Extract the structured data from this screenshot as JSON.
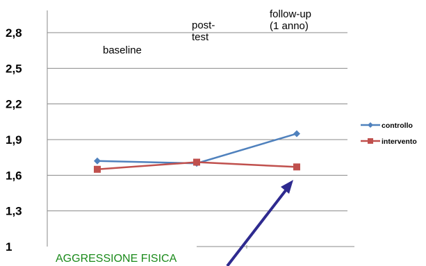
{
  "chart_data": {
    "type": "line",
    "categories": [
      [
        "baseline"
      ],
      [
        "post-",
        "test"
      ],
      [
        "follow-up",
        "(1 anno)"
      ]
    ],
    "series": [
      {
        "name": "controllo",
        "values": [
          1.72,
          1.7,
          1.95
        ],
        "color": "#4f81bd",
        "marker": "diamond"
      },
      {
        "name": "intervento",
        "values": [
          1.65,
          1.71,
          1.67
        ],
        "color": "#c0504d",
        "marker": "square"
      }
    ],
    "yticks": [
      "1",
      "1,3",
      "1,6",
      "1,9",
      "2,2",
      "2,5",
      "2,8"
    ],
    "ylim": [
      1,
      2.9
    ],
    "grid": true,
    "legend": "right",
    "annotation": {
      "text": "AGGRESSIONE FISICA",
      "color": "#1a8a1a"
    },
    "arrow": {
      "color": "#2e2a8f",
      "points_to": "intervento follow-up"
    }
  }
}
